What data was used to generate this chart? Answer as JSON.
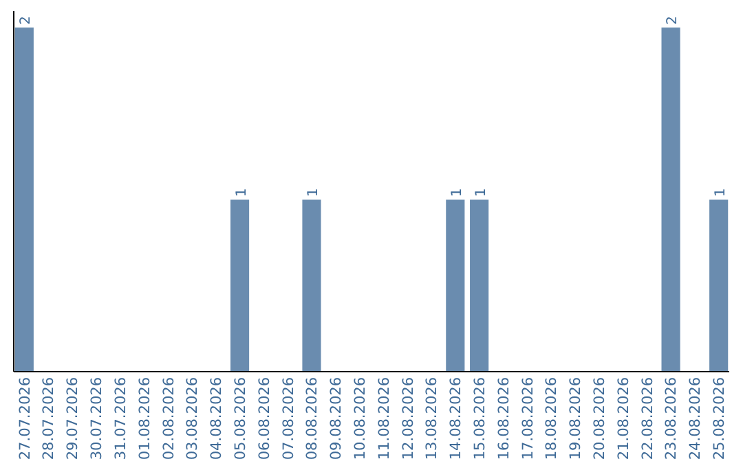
{
  "chart_data": {
    "type": "bar",
    "categories": [
      "27.07.2026",
      "28.07.2026",
      "29.07.2026",
      "30.07.2026",
      "31.07.2026",
      "01.08.2026",
      "02.08.2026",
      "03.08.2026",
      "04.08.2026",
      "05.08.2026",
      "06.08.2026",
      "07.08.2026",
      "08.08.2026",
      "09.08.2026",
      "10.08.2026",
      "11.08.2026",
      "12.08.2026",
      "13.08.2026",
      "14.08.2026",
      "15.08.2026",
      "16.08.2026",
      "17.08.2026",
      "18.08.2026",
      "19.08.2026",
      "20.08.2026",
      "21.08.2026",
      "22.08.2026",
      "23.08.2026",
      "24.08.2026",
      "25.08.2026"
    ],
    "values": [
      2,
      0,
      0,
      0,
      0,
      0,
      0,
      0,
      0,
      1,
      0,
      0,
      1,
      0,
      0,
      0,
      0,
      0,
      1,
      1,
      0,
      0,
      0,
      0,
      0,
      0,
      0,
      2,
      0,
      1
    ],
    "value_labels": [
      "2",
      null,
      null,
      null,
      null,
      null,
      null,
      null,
      null,
      "1",
      null,
      null,
      "1",
      null,
      null,
      null,
      null,
      null,
      "1",
      "1",
      null,
      null,
      null,
      null,
      null,
      null,
      null,
      "2",
      null,
      "1"
    ],
    "color": "#6a8caf"
  }
}
